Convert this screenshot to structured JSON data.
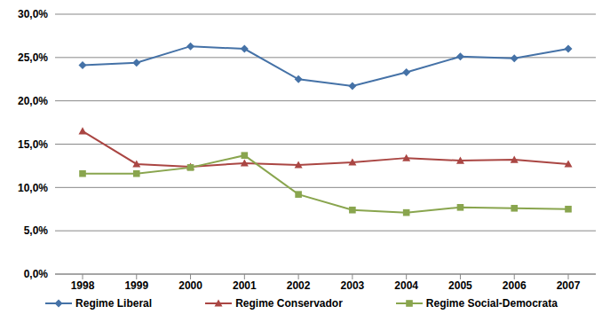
{
  "chart_data": {
    "type": "line",
    "categories": [
      "1998",
      "1999",
      "2000",
      "2001",
      "2002",
      "2003",
      "2004",
      "2005",
      "2006",
      "2007"
    ],
    "series": [
      {
        "name": "Regime Liberal",
        "color": "#4572A7",
        "marker": "diamond",
        "values": [
          24.1,
          24.4,
          26.3,
          26.0,
          22.5,
          21.7,
          23.3,
          25.1,
          24.9,
          26.0
        ]
      },
      {
        "name": "Regime Conservador",
        "color": "#AA4643",
        "marker": "triangle",
        "values": [
          16.5,
          12.7,
          12.4,
          12.8,
          12.6,
          12.9,
          13.4,
          13.1,
          13.2,
          12.7
        ]
      },
      {
        "name": "Regime Social-Democrata",
        "color": "#89A54E",
        "marker": "square",
        "values": [
          11.6,
          11.6,
          12.3,
          13.7,
          9.2,
          7.4,
          7.1,
          7.7,
          7.6,
          7.5
        ]
      }
    ],
    "ylim": [
      0,
      30
    ],
    "yticks": [
      {
        "value": 0,
        "label": "0,0%"
      },
      {
        "value": 5,
        "label": "5,0%"
      },
      {
        "value": 10,
        "label": "10,0%"
      },
      {
        "value": 15,
        "label": "15,0%"
      },
      {
        "value": 20,
        "label": "20,0%"
      },
      {
        "value": 25,
        "label": "25,0%"
      },
      {
        "value": 30,
        "label": "30,0%"
      }
    ],
    "grid": true,
    "legend": "bottom"
  }
}
